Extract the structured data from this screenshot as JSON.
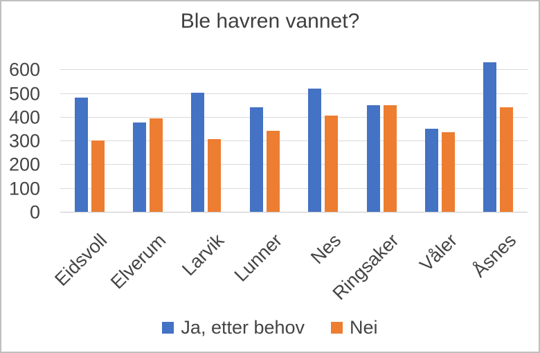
{
  "chart_data": {
    "type": "bar",
    "title": "Ble havren vannet?",
    "categories": [
      "Eidsvoll",
      "Elverum",
      "Larvik",
      "Lunner",
      "Nes",
      "Ringsaker",
      "Våler",
      "Åsnes"
    ],
    "series": [
      {
        "name": "Ja, etter behov",
        "color": "#4472C4",
        "values": [
          480,
          375,
          500,
          440,
          520,
          450,
          350,
          630
        ]
      },
      {
        "name": "Nei",
        "color": "#ED7D31",
        "values": [
          300,
          395,
          305,
          340,
          405,
          450,
          335,
          440
        ]
      }
    ],
    "xlabel": "",
    "ylabel": "",
    "yticks": [
      0,
      100,
      200,
      300,
      400,
      500,
      600
    ],
    "ylim": [
      0,
      650
    ],
    "grid": true,
    "legend_position": "bottom",
    "gridline_color": "#D9D9D9",
    "axis_line_color": "#C6C6C6",
    "text_color": "#444444",
    "background_color": "#FFFFFF"
  }
}
